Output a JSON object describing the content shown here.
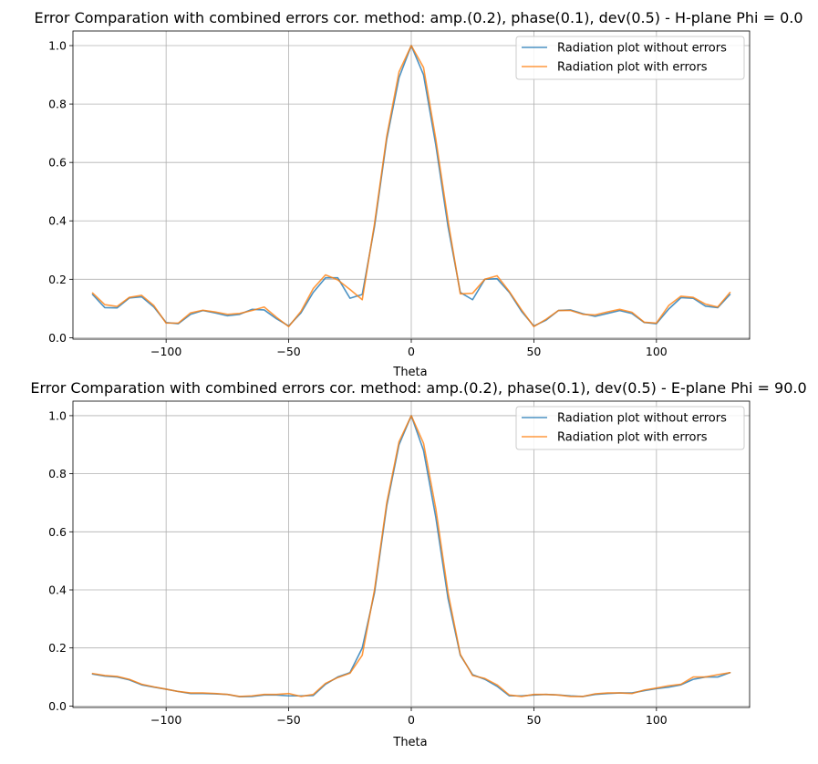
{
  "chart_data": [
    {
      "type": "line",
      "title": "Error Comparation with combined errors cor. method: amp.(0.2), phase(0.1), dev(0.5) - H-plane Phi = 0.0",
      "xlabel": "Theta",
      "ylabel": "",
      "xlim": [
        -138,
        138
      ],
      "ylim": [
        -0.005,
        1.05
      ],
      "xticks": [
        -100,
        -50,
        0,
        50,
        100
      ],
      "yticks": [
        0.0,
        0.2,
        0.4,
        0.6,
        0.8,
        1.0
      ],
      "grid": true,
      "legend_position": "top-right",
      "x": [
        -130,
        -125,
        -120,
        -115,
        -110,
        -105,
        -100,
        -95,
        -90,
        -85,
        -80,
        -75,
        -70,
        -65,
        -60,
        -55,
        -50,
        -45,
        -40,
        -35,
        -30,
        -25,
        -20,
        -15,
        -10,
        -5,
        0,
        5,
        10,
        15,
        20,
        25,
        30,
        35,
        40,
        45,
        50,
        55,
        60,
        65,
        70,
        75,
        80,
        85,
        90,
        95,
        100,
        105,
        110,
        115,
        120,
        125,
        130
      ],
      "series": [
        {
          "name": "Radiation plot without errors",
          "color": "#1f77b4",
          "values": [
            0.148,
            0.103,
            0.102,
            0.136,
            0.14,
            0.105,
            0.052,
            0.048,
            0.08,
            0.093,
            0.085,
            0.075,
            0.08,
            0.097,
            0.095,
            0.065,
            0.04,
            0.085,
            0.155,
            0.205,
            0.205,
            0.135,
            0.148,
            0.38,
            0.68,
            0.89,
            1.0,
            0.9,
            0.66,
            0.38,
            0.155,
            0.13,
            0.2,
            0.202,
            0.155,
            0.09,
            0.04,
            0.06,
            0.093,
            0.095,
            0.082,
            0.073,
            0.083,
            0.093,
            0.083,
            0.052,
            0.048,
            0.098,
            0.137,
            0.135,
            0.108,
            0.103,
            0.148
          ]
        },
        {
          "name": "Radiation plot with errors",
          "color": "#ff7f0e",
          "values": [
            0.153,
            0.113,
            0.107,
            0.138,
            0.145,
            0.11,
            0.05,
            0.05,
            0.085,
            0.094,
            0.088,
            0.08,
            0.083,
            0.093,
            0.105,
            0.07,
            0.038,
            0.09,
            0.168,
            0.215,
            0.198,
            0.165,
            0.13,
            0.39,
            0.69,
            0.91,
            1.0,
            0.925,
            0.68,
            0.4,
            0.15,
            0.152,
            0.2,
            0.212,
            0.158,
            0.095,
            0.038,
            0.063,
            0.093,
            0.093,
            0.08,
            0.078,
            0.088,
            0.097,
            0.087,
            0.053,
            0.05,
            0.11,
            0.142,
            0.138,
            0.115,
            0.105,
            0.155
          ]
        }
      ]
    },
    {
      "type": "line",
      "title": "Error Comparation with combined errors cor. method: amp.(0.2), phase(0.1), dev(0.5) - E-plane Phi = 90.0",
      "xlabel": "Theta",
      "ylabel": "",
      "xlim": [
        -138,
        138
      ],
      "ylim": [
        -0.005,
        1.05
      ],
      "xticks": [
        -100,
        -50,
        0,
        50,
        100
      ],
      "yticks": [
        0.0,
        0.2,
        0.4,
        0.6,
        0.8,
        1.0
      ],
      "grid": true,
      "legend_position": "top-right",
      "x": [
        -130,
        -125,
        -120,
        -115,
        -110,
        -105,
        -100,
        -95,
        -90,
        -85,
        -80,
        -75,
        -70,
        -65,
        -60,
        -55,
        -50,
        -45,
        -40,
        -35,
        -30,
        -25,
        -20,
        -15,
        -10,
        -5,
        0,
        5,
        10,
        15,
        20,
        25,
        30,
        35,
        40,
        45,
        50,
        55,
        60,
        65,
        70,
        75,
        80,
        85,
        90,
        95,
        100,
        105,
        110,
        115,
        120,
        125,
        130
      ],
      "series": [
        {
          "name": "Radiation plot without errors",
          "color": "#1f77b4",
          "values": [
            0.11,
            0.103,
            0.1,
            0.09,
            0.073,
            0.065,
            0.058,
            0.05,
            0.043,
            0.043,
            0.042,
            0.04,
            0.032,
            0.033,
            0.038,
            0.038,
            0.035,
            0.035,
            0.036,
            0.075,
            0.1,
            0.115,
            0.2,
            0.39,
            0.69,
            0.9,
            1.0,
            0.88,
            0.65,
            0.37,
            0.175,
            0.108,
            0.092,
            0.068,
            0.035,
            0.035,
            0.038,
            0.04,
            0.038,
            0.035,
            0.033,
            0.04,
            0.043,
            0.045,
            0.045,
            0.053,
            0.06,
            0.065,
            0.073,
            0.092,
            0.1,
            0.1,
            0.115
          ]
        },
        {
          "name": "Radiation plot with errors",
          "color": "#ff7f0e",
          "values": [
            0.112,
            0.105,
            0.102,
            0.092,
            0.075,
            0.066,
            0.058,
            0.05,
            0.045,
            0.045,
            0.043,
            0.04,
            0.033,
            0.035,
            0.04,
            0.04,
            0.043,
            0.033,
            0.04,
            0.078,
            0.098,
            0.113,
            0.175,
            0.4,
            0.7,
            0.91,
            1.0,
            0.905,
            0.68,
            0.39,
            0.178,
            0.105,
            0.095,
            0.073,
            0.038,
            0.033,
            0.04,
            0.04,
            0.038,
            0.033,
            0.033,
            0.042,
            0.045,
            0.045,
            0.043,
            0.055,
            0.062,
            0.07,
            0.075,
            0.1,
            0.1,
            0.108,
            0.115
          ]
        }
      ]
    }
  ]
}
